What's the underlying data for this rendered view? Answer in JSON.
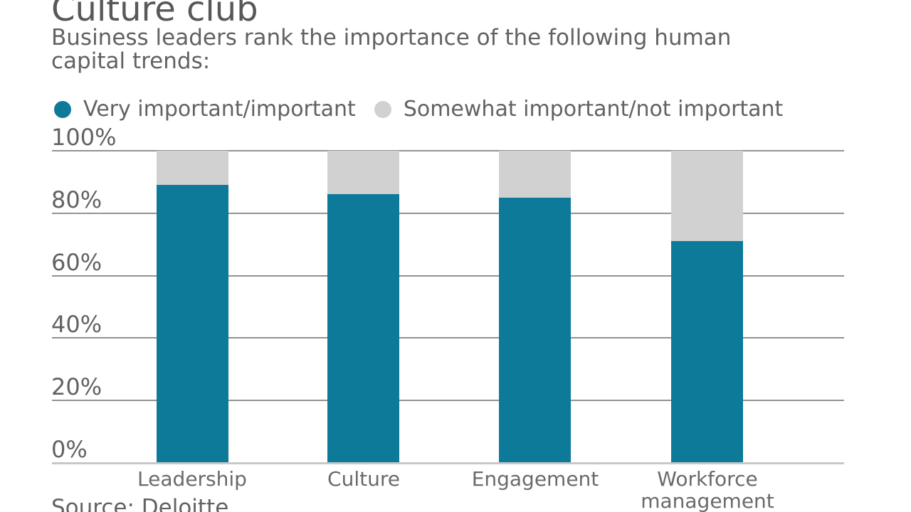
{
  "chart_data": {
    "type": "bar",
    "stacked": true,
    "title": "Culture club",
    "subtitle_lines": [
      "Business leaders rank the importance of the following human",
      "capital trends:"
    ],
    "categories": [
      "Leadership",
      "Culture",
      "Engagement",
      "Workforce management"
    ],
    "series": [
      {
        "name": "Very important/important",
        "color": "#0d7a99",
        "values": [
          89,
          86,
          85,
          71
        ]
      },
      {
        "name": "Somewhat important/not important",
        "color": "#d1d1d1",
        "values": [
          11,
          14,
          15,
          29
        ]
      }
    ],
    "xlabel": "",
    "ylabel": "",
    "ylim": [
      0,
      100
    ],
    "yticks": [
      "100%",
      "80%",
      "60%",
      "40%",
      "20%",
      "0%"
    ],
    "grid": true,
    "legend_position": "top",
    "source": "Source: Deloitte"
  }
}
